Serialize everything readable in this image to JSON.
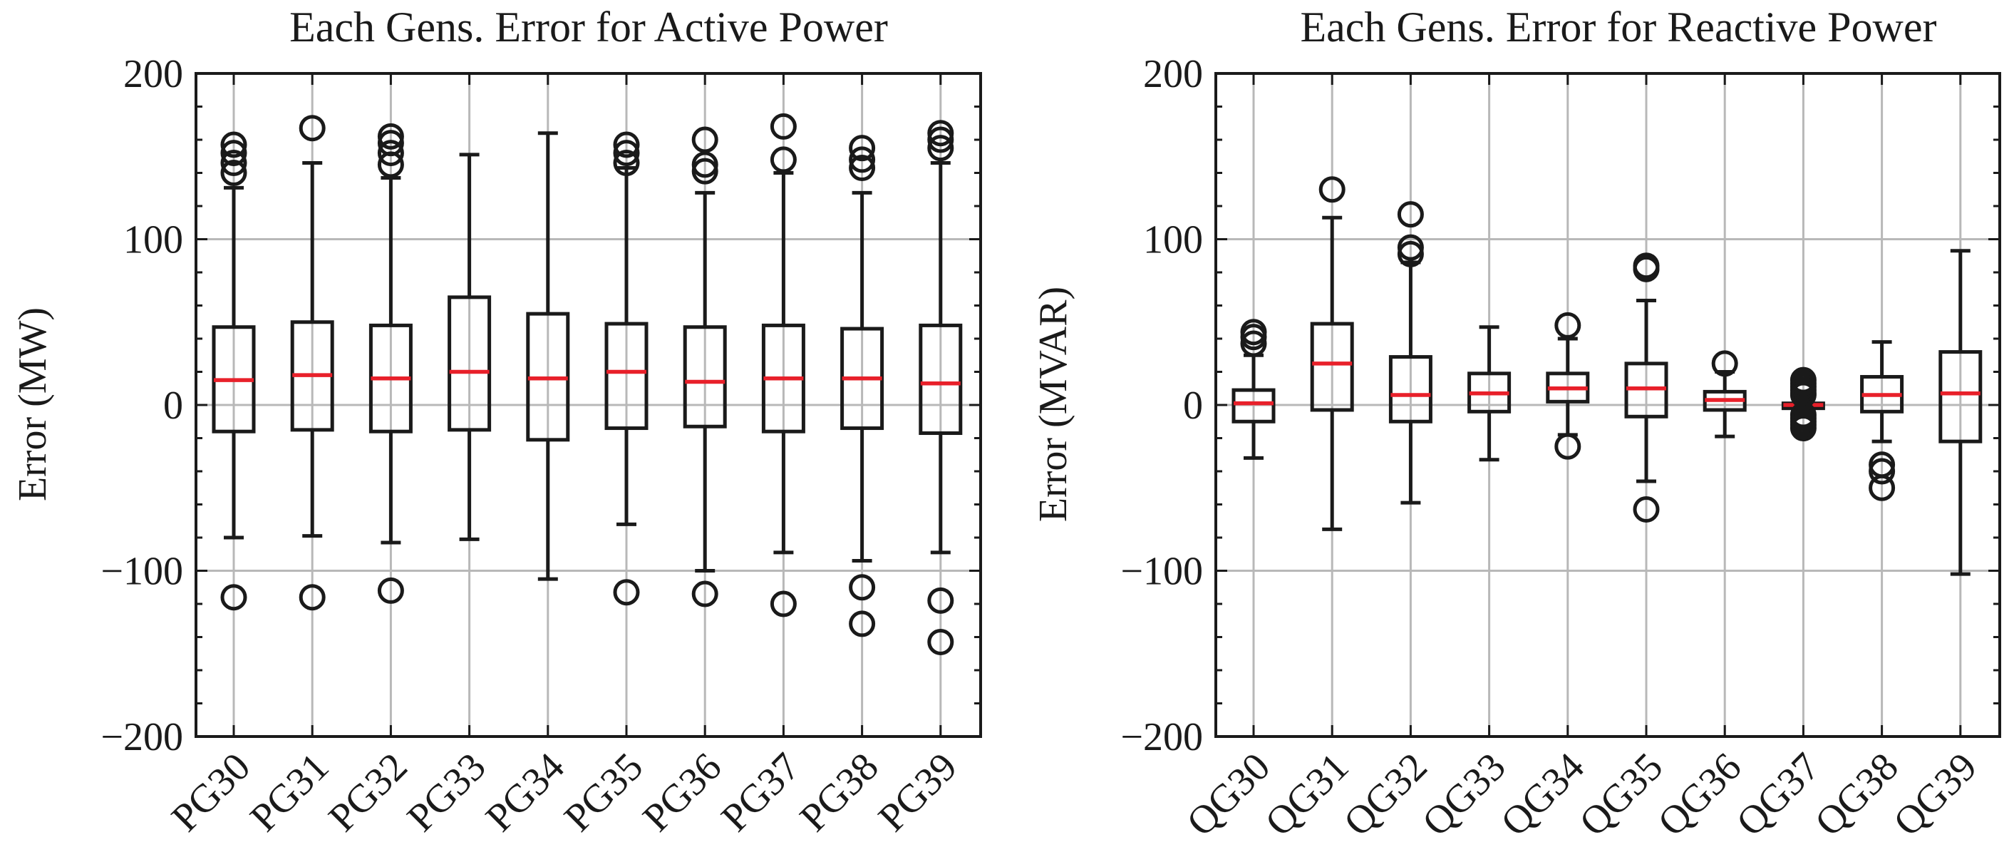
{
  "chart_data": [
    {
      "type": "box",
      "title": "Each Gens. Error for Active Power",
      "xlabel": "",
      "ylabel": "Error (MW)",
      "ylim": [
        -200,
        200
      ],
      "yticks": [
        -200,
        -100,
        0,
        100,
        200
      ],
      "ytick_labels": [
        "−200",
        "−100",
        "0",
        "100",
        "200"
      ],
      "grid": true,
      "categories": [
        "PG30",
        "PG31",
        "PG32",
        "PG33",
        "PG34",
        "PG35",
        "PG36",
        "PG37",
        "PG38",
        "PG39"
      ],
      "boxes": [
        {
          "whislo": -80,
          "q1": -16,
          "med": 15,
          "q3": 47,
          "whishi": 131,
          "fliers": [
            157,
            152,
            146,
            140,
            -116
          ]
        },
        {
          "whislo": -79,
          "q1": -15,
          "med": 18,
          "q3": 50,
          "whishi": 146,
          "fliers": [
            167,
            -116
          ]
        },
        {
          "whislo": -83,
          "q1": -16,
          "med": 16,
          "q3": 48,
          "whishi": 137,
          "fliers": [
            162,
            158,
            152,
            145,
            -112
          ]
        },
        {
          "whislo": -81,
          "q1": -15,
          "med": 20,
          "q3": 65,
          "whishi": 151,
          "fliers": []
        },
        {
          "whislo": -105,
          "q1": -21,
          "med": 16,
          "q3": 55,
          "whishi": 164,
          "fliers": []
        },
        {
          "whislo": -72,
          "q1": -14,
          "med": 20,
          "q3": 49,
          "whishi": 143,
          "fliers": [
            157,
            152,
            146,
            -113
          ]
        },
        {
          "whislo": -100,
          "q1": -13,
          "med": 14,
          "q3": 47,
          "whishi": 128,
          "fliers": [
            160,
            145,
            141,
            -114
          ]
        },
        {
          "whislo": -89,
          "q1": -16,
          "med": 16,
          "q3": 48,
          "whishi": 140,
          "fliers": [
            168,
            148,
            -120
          ]
        },
        {
          "whislo": -94,
          "q1": -14,
          "med": 16,
          "q3": 46,
          "whishi": 128,
          "fliers": [
            155,
            148,
            143,
            -110,
            -132
          ]
        },
        {
          "whislo": -89,
          "q1": -17,
          "med": 13,
          "q3": 48,
          "whishi": 146,
          "fliers": [
            164,
            160,
            155,
            -118,
            -143
          ]
        }
      ]
    },
    {
      "type": "box",
      "title": "Each Gens. Error for Reactive Power",
      "xlabel": "",
      "ylabel": "Error (MVAR)",
      "ylim": [
        -200,
        200
      ],
      "yticks": [
        -200,
        -100,
        0,
        100,
        200
      ],
      "ytick_labels": [
        "−200",
        "−100",
        "0",
        "100",
        "200"
      ],
      "grid": true,
      "categories": [
        "QG30",
        "QG31",
        "QG32",
        "QG33",
        "QG34",
        "QG35",
        "QG36",
        "QG37",
        "QG38",
        "QG39"
      ],
      "boxes": [
        {
          "whislo": -32,
          "q1": -10,
          "med": 1,
          "q3": 9,
          "whishi": 30,
          "fliers": [
            44,
            41,
            37
          ]
        },
        {
          "whislo": -75,
          "q1": -3,
          "med": 25,
          "q3": 49,
          "whishi": 113,
          "fliers": [
            130
          ]
        },
        {
          "whislo": -59,
          "q1": -10,
          "med": 6,
          "q3": 29,
          "whishi": 86,
          "fliers": [
            115,
            95,
            91
          ]
        },
        {
          "whislo": -33,
          "q1": -4,
          "med": 7,
          "q3": 19,
          "whishi": 47,
          "fliers": []
        },
        {
          "whislo": -18,
          "q1": 2,
          "med": 10,
          "q3": 19,
          "whishi": 40,
          "fliers": [
            48,
            -25
          ]
        },
        {
          "whislo": -46,
          "q1": -7,
          "med": 10,
          "q3": 25,
          "whishi": 63,
          "fliers": [
            84,
            82,
            -63
          ]
        },
        {
          "whislo": -19,
          "q1": -3,
          "med": 3,
          "q3": 8,
          "whishi": 20,
          "fliers": [
            25
          ]
        },
        {
          "whislo": -4,
          "q1": -2,
          "med": 0,
          "q3": 1,
          "whishi": 4,
          "fliers": [
            15,
            13,
            11,
            9,
            7,
            6,
            -6,
            -8,
            -10,
            -12,
            -14
          ]
        },
        {
          "whislo": -22,
          "q1": -4,
          "med": 6,
          "q3": 17,
          "whishi": 38,
          "fliers": [
            -36,
            -40,
            -50
          ]
        },
        {
          "whislo": -102,
          "q1": -22,
          "med": 7,
          "q3": 32,
          "whishi": 93,
          "fliers": []
        }
      ]
    }
  ]
}
